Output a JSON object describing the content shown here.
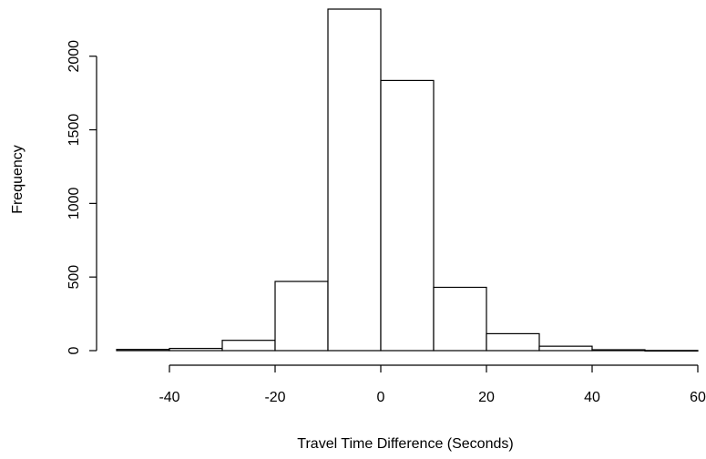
{
  "chart_data": {
    "type": "bar",
    "subtype": "histogram",
    "title": "",
    "xlabel": "Travel Time Difference (Seconds)",
    "ylabel": "Frequency",
    "bins": [
      {
        "start": -50,
        "end": -40,
        "count": 8
      },
      {
        "start": -40,
        "end": -30,
        "count": 15
      },
      {
        "start": -30,
        "end": -20,
        "count": 70
      },
      {
        "start": -20,
        "end": -10,
        "count": 470
      },
      {
        "start": -10,
        "end": 0,
        "count": 2320
      },
      {
        "start": 0,
        "end": 10,
        "count": 1835
      },
      {
        "start": 10,
        "end": 20,
        "count": 430
      },
      {
        "start": 20,
        "end": 30,
        "count": 115
      },
      {
        "start": 30,
        "end": 40,
        "count": 30
      },
      {
        "start": 40,
        "end": 50,
        "count": 6
      },
      {
        "start": 50,
        "end": 60,
        "count": 1
      }
    ],
    "xlim": [
      -50,
      60
    ],
    "ylim": [
      0,
      2320
    ],
    "x_ticks": [
      "-40",
      "-20",
      "0",
      "20",
      "40",
      "60"
    ],
    "y_ticks": [
      "0",
      "500",
      "1000",
      "1500",
      "2000"
    ],
    "grid": false,
    "legend": "none",
    "colors": {
      "bar_fill": "#ffffff",
      "bar_stroke": "#000000",
      "axis": "#000000"
    }
  }
}
